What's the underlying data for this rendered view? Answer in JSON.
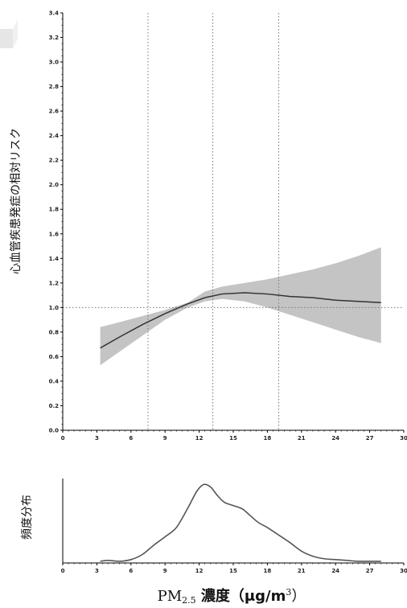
{
  "chart_data": [
    {
      "type": "line",
      "ylabel": "心血管疾患発症の相対リスク",
      "xlim": [
        0,
        30
      ],
      "ylim": [
        0,
        3.4
      ],
      "x_ticks": [
        0,
        3,
        6,
        9,
        12,
        15,
        18,
        21,
        24,
        27,
        30
      ],
      "x_tick_labels": [
        "0",
        "3",
        "6",
        "9",
        "12",
        "15",
        "18",
        "21",
        "24",
        "27",
        "30"
      ],
      "y_ticks": [
        0.0,
        0.2,
        0.4,
        0.6,
        0.8,
        1.0,
        1.2,
        1.4,
        1.6,
        1.8,
        2.0,
        2.2,
        2.4,
        2.6,
        2.8,
        3.0,
        3.2,
        3.4
      ],
      "y_tick_labels": [
        "0.0",
        "0.2",
        "0.4",
        "0.6",
        "0.8",
        "1.0",
        "1.2",
        "1.4",
        "1.6",
        "1.8",
        "2.0",
        "2.2",
        "2.4",
        "2.6",
        "2.8",
        "3.0",
        "3.2",
        "3.4"
      ],
      "reference_lines": {
        "vertical_x": [
          7.5,
          13.2,
          19.0
        ],
        "horizontal_y": 1.0
      },
      "series": [
        {
          "x": [
            3.3,
            5,
            7,
            9,
            11,
            12.5,
            14,
            16,
            18,
            20,
            22,
            24,
            26,
            28
          ],
          "values": [
            0.67,
            0.76,
            0.86,
            0.95,
            1.03,
            1.08,
            1.11,
            1.12,
            1.11,
            1.09,
            1.08,
            1.06,
            1.05,
            1.04
          ],
          "lower": [
            0.53,
            0.64,
            0.77,
            0.9,
            1.0,
            1.05,
            1.07,
            1.05,
            1.0,
            0.94,
            0.88,
            0.82,
            0.76,
            0.71
          ],
          "upper": [
            0.84,
            0.88,
            0.93,
            0.98,
            1.04,
            1.13,
            1.17,
            1.2,
            1.23,
            1.27,
            1.31,
            1.36,
            1.42,
            1.49
          ]
        }
      ]
    },
    {
      "type": "line",
      "ylabel": "頻度分布",
      "xlabel": "PM2.5 濃度（μg/m3）",
      "xlabel_parts": {
        "main": "PM",
        "sub": "2.5",
        "mid": " 濃度（μg/m",
        "sup": "3",
        "end": "）"
      },
      "xlim": [
        0,
        30
      ],
      "ylim": [
        0,
        1
      ],
      "x_ticks": [
        0,
        3,
        6,
        9,
        12,
        15,
        18,
        21,
        24,
        27,
        30
      ],
      "x_tick_labels": [
        "0",
        "3",
        "6",
        "9",
        "12",
        "15",
        "18",
        "21",
        "24",
        "27",
        "30"
      ],
      "series": [
        {
          "x": [
            3.3,
            4,
            5,
            6,
            7,
            8,
            9,
            10,
            11,
            11.8,
            12.4,
            13,
            13.6,
            14.2,
            15,
            15.8,
            16.5,
            17.2,
            18,
            19,
            20,
            21,
            22,
            23,
            24,
            25,
            26,
            27,
            28
          ],
          "values": [
            0.02,
            0.03,
            0.02,
            0.04,
            0.1,
            0.21,
            0.31,
            0.42,
            0.65,
            0.85,
            0.93,
            0.9,
            0.8,
            0.72,
            0.68,
            0.64,
            0.56,
            0.48,
            0.42,
            0.33,
            0.24,
            0.14,
            0.08,
            0.05,
            0.04,
            0.03,
            0.02,
            0.02,
            0.02
          ]
        }
      ]
    }
  ]
}
